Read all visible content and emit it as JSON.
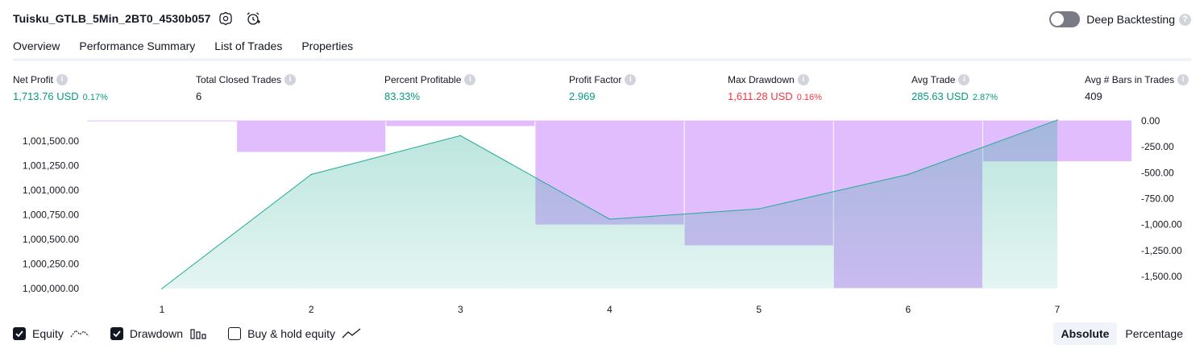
{
  "header": {
    "title": "Tuisku_GTLB_5Min_2BT0_4530b057",
    "settings_icon": "gear-icon",
    "alert_icon": "alarm-clock-plus-icon",
    "deep_backtesting_label": "Deep Backtesting",
    "deep_backtesting_enabled": false,
    "help_label": "?"
  },
  "tabs": [
    {
      "label": "Overview",
      "active": true
    },
    {
      "label": "Performance Summary",
      "active": false
    },
    {
      "label": "List of Trades",
      "active": false
    },
    {
      "label": "Properties",
      "active": false
    }
  ],
  "metrics": [
    {
      "label": "Net Profit",
      "value": "1,713.76 USD",
      "pct": "0.17%",
      "color": "green"
    },
    {
      "label": "Total Closed Trades",
      "value": "6",
      "pct": "",
      "color": "neutral"
    },
    {
      "label": "Percent Profitable",
      "value": "83.33%",
      "pct": "",
      "color": "green"
    },
    {
      "label": "Profit Factor",
      "value": "2.969",
      "pct": "",
      "color": "green"
    },
    {
      "label": "Max Drawdown",
      "value": "1,611.28 USD",
      "pct": "0.16%",
      "color": "red"
    },
    {
      "label": "Avg Trade",
      "value": "285.63 USD",
      "pct": "2.87%",
      "color": "green"
    },
    {
      "label": "Avg # Bars in Trades",
      "value": "409",
      "pct": "",
      "color": "neutral"
    }
  ],
  "info_icon_label": "i",
  "chart_data": {
    "type": "area",
    "x": [
      1,
      2,
      3,
      4,
      5,
      6,
      7
    ],
    "x_tick_labels": [
      "1",
      "2",
      "3",
      "4",
      "5",
      "6",
      "7"
    ],
    "equity": [
      1000000,
      1001160,
      1001555,
      1000705,
      1000810,
      1001160,
      1001713.76
    ],
    "drawdown_categories": [
      1,
      2,
      3,
      4,
      5,
      6,
      7
    ],
    "drawdown": [
      0,
      -300,
      -50,
      -1000,
      -1200,
      -1611.28,
      -390
    ],
    "left_ticks": [
      "1,001,500.00",
      "1,001,250.00",
      "1,001,000.00",
      "1,000,750.00",
      "1,000,500.00",
      "1,000,250.00",
      "1,000,000.00"
    ],
    "left_tick_values": [
      1001500,
      1001250,
      1001000,
      1000750,
      1000500,
      1000250,
      1000000
    ],
    "right_ticks": [
      "0.00",
      "-250.00",
      "-500.00",
      "-750.00",
      "-1,000.00",
      "-1,250.00",
      "-1,500.00"
    ],
    "right_tick_values": [
      0,
      -250,
      -500,
      -750,
      -1000,
      -1250,
      -1500
    ],
    "equity_color": "#22ab94",
    "drawdown_color": "#e1bdfd"
  },
  "legend": [
    {
      "label": "Equity",
      "checked": true,
      "icon": "equity-line-icon"
    },
    {
      "label": "Drawdown",
      "checked": true,
      "icon": "drawdown-bars-icon"
    },
    {
      "label": "Buy & hold equity",
      "checked": false,
      "icon": "buy-hold-line-icon"
    }
  ],
  "modes": [
    {
      "label": "Absolute",
      "active": true
    },
    {
      "label": "Percentage",
      "active": false
    }
  ]
}
